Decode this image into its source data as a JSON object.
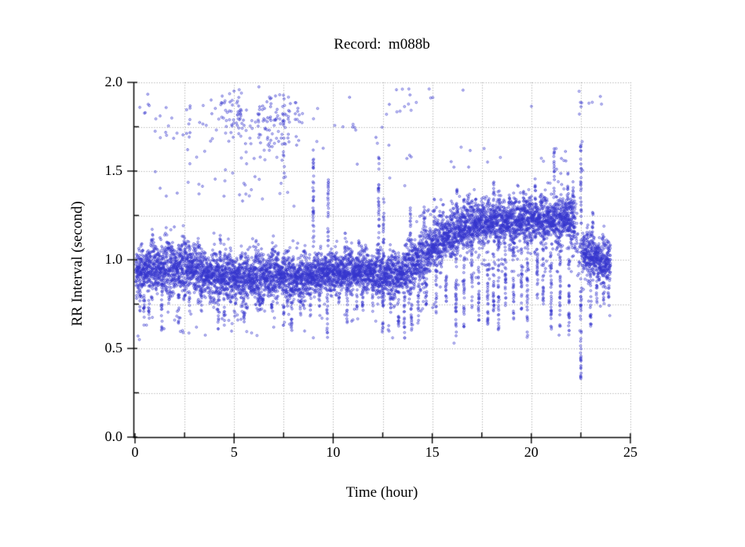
{
  "chart": {
    "title": "Record:  m088b",
    "xlabel": "Time (hour)",
    "ylabel": "RR Interval (second)",
    "x_tick_labels": [
      "0",
      "5",
      "10",
      "15",
      "20",
      "25"
    ],
    "y_tick_labels": [
      "0.0",
      "0.5",
      "1.0",
      "1.5",
      "2.0"
    ]
  },
  "chart_data": {
    "type": "scatter",
    "title": "Record:  m088b",
    "xlabel": "Time (hour)",
    "ylabel": "RR Interval (second)",
    "xlim": [
      0,
      25
    ],
    "ylim": [
      0.0,
      2.0
    ],
    "x_major_ticks": [
      0,
      5,
      10,
      15,
      20,
      25
    ],
    "x_minor_step": 2.5,
    "y_major_ticks": [
      0.0,
      0.5,
      1.0,
      1.5,
      2.0
    ],
    "y_minor_step": 0.25,
    "grid": "dotted",
    "grid_color": "#9b9b9b",
    "axis_color": "#000000",
    "marker": {
      "shape": "open-circle",
      "color": "#3535cd",
      "radius_px": 1.3
    },
    "data_time_range_hours": [
      0.04,
      24.0
    ],
    "band_profile": [
      [
        0.0,
        0.92,
        0.1
      ],
      [
        0.5,
        0.93,
        0.13
      ],
      [
        1.0,
        0.95,
        0.14
      ],
      [
        2.0,
        0.95,
        0.15
      ],
      [
        3.0,
        0.95,
        0.15
      ],
      [
        4.0,
        0.92,
        0.14
      ],
      [
        4.6,
        0.9,
        0.13
      ],
      [
        6.0,
        0.9,
        0.14
      ],
      [
        7.0,
        0.91,
        0.14
      ],
      [
        8.0,
        0.9,
        0.13
      ],
      [
        9.0,
        0.9,
        0.11
      ],
      [
        9.5,
        0.92,
        0.1
      ],
      [
        10.0,
        0.93,
        0.11
      ],
      [
        11.0,
        0.93,
        0.11
      ],
      [
        12.0,
        0.93,
        0.11
      ],
      [
        12.6,
        0.92,
        0.12
      ],
      [
        13.2,
        0.9,
        0.13
      ],
      [
        13.8,
        0.95,
        0.15
      ],
      [
        14.4,
        1.02,
        0.15
      ],
      [
        15.0,
        1.07,
        0.14
      ],
      [
        15.6,
        1.12,
        0.14
      ],
      [
        16.2,
        1.16,
        0.13
      ],
      [
        16.8,
        1.2,
        0.12
      ],
      [
        17.5,
        1.2,
        0.12
      ],
      [
        18.5,
        1.21,
        0.13
      ],
      [
        19.5,
        1.22,
        0.12
      ],
      [
        20.5,
        1.22,
        0.12
      ],
      [
        21.0,
        1.23,
        0.12
      ],
      [
        21.8,
        1.24,
        0.13
      ],
      [
        22.2,
        1.2,
        0.14
      ],
      [
        22.35,
        1.05,
        0.25
      ],
      [
        22.6,
        1.05,
        0.12
      ],
      [
        23.2,
        1.03,
        0.12
      ],
      [
        23.6,
        0.98,
        0.13
      ],
      [
        24.0,
        0.99,
        0.14
      ]
    ],
    "down_spikes": [
      [
        0.25,
        0.7
      ],
      [
        0.45,
        0.62
      ],
      [
        0.7,
        0.66
      ],
      [
        1.35,
        0.6
      ],
      [
        2.2,
        0.63
      ],
      [
        2.75,
        0.71
      ],
      [
        3.35,
        0.68
      ],
      [
        4.2,
        0.6
      ],
      [
        4.5,
        0.63
      ],
      [
        5.05,
        0.68
      ],
      [
        5.5,
        0.65
      ],
      [
        6.3,
        0.7
      ],
      [
        6.9,
        0.72
      ],
      [
        7.5,
        0.63
      ],
      [
        7.9,
        0.6
      ],
      [
        8.35,
        0.68
      ],
      [
        8.85,
        0.65
      ],
      [
        9.3,
        0.72
      ],
      [
        9.7,
        0.56
      ],
      [
        10.3,
        0.74
      ],
      [
        10.7,
        0.63
      ],
      [
        11.2,
        0.72
      ],
      [
        11.5,
        0.7
      ],
      [
        12.0,
        0.74
      ],
      [
        12.5,
        0.56
      ],
      [
        12.9,
        0.7
      ],
      [
        13.3,
        0.6
      ],
      [
        13.6,
        0.55
      ],
      [
        13.95,
        0.58
      ],
      [
        14.3,
        0.65
      ],
      [
        14.7,
        0.72
      ],
      [
        15.2,
        0.7
      ],
      [
        15.7,
        0.74
      ],
      [
        16.2,
        0.56
      ],
      [
        16.6,
        0.62
      ],
      [
        17.0,
        0.72
      ],
      [
        17.35,
        0.65
      ],
      [
        17.8,
        0.62
      ],
      [
        18.1,
        0.7
      ],
      [
        18.35,
        0.6
      ],
      [
        18.7,
        0.74
      ],
      [
        19.1,
        0.65
      ],
      [
        19.5,
        0.72
      ],
      [
        19.8,
        0.56
      ],
      [
        20.3,
        0.78
      ],
      [
        20.6,
        0.74
      ],
      [
        21.0,
        0.6
      ],
      [
        21.45,
        0.62
      ],
      [
        21.9,
        0.56
      ],
      [
        22.5,
        0.33
      ],
      [
        23.0,
        0.62
      ],
      [
        23.3,
        0.72
      ],
      [
        23.65,
        0.75
      ],
      [
        23.9,
        0.78
      ]
    ],
    "up_spikes": [
      [
        4.3,
        1.16
      ],
      [
        6.1,
        1.14
      ],
      [
        9.0,
        1.62
      ],
      [
        9.75,
        1.47
      ],
      [
        10.6,
        1.16
      ],
      [
        11.3,
        1.12
      ],
      [
        12.3,
        1.6
      ],
      [
        12.55,
        1.36
      ],
      [
        13.9,
        1.3
      ],
      [
        14.6,
        1.32
      ],
      [
        15.1,
        1.35
      ],
      [
        15.55,
        1.33
      ],
      [
        16.25,
        1.4
      ],
      [
        16.6,
        1.38
      ],
      [
        17.2,
        1.36
      ],
      [
        18.1,
        1.44
      ],
      [
        18.9,
        1.38
      ],
      [
        19.6,
        1.4
      ],
      [
        20.2,
        1.48
      ],
      [
        21.15,
        1.63
      ],
      [
        21.85,
        1.5
      ],
      [
        22.1,
        1.44
      ],
      [
        22.5,
        1.67
      ],
      [
        23.1,
        1.3
      ]
    ],
    "outlier_clusters": [
      {
        "t0": 0.2,
        "t1": 1.2,
        "y0": 1.6,
        "y1": 1.95,
        "n": 8
      },
      {
        "t0": 1.2,
        "t1": 2.6,
        "y0": 1.55,
        "y1": 1.95,
        "n": 10
      },
      {
        "t0": 2.6,
        "t1": 4.2,
        "y0": 1.5,
        "y1": 2.0,
        "n": 22
      },
      {
        "t0": 4.2,
        "t1": 5.4,
        "y0": 1.65,
        "y1": 2.0,
        "n": 52
      },
      {
        "t0": 5.0,
        "t1": 6.2,
        "y0": 1.5,
        "y1": 1.85,
        "n": 18
      },
      {
        "t0": 6.2,
        "t1": 7.6,
        "y0": 1.55,
        "y1": 2.0,
        "n": 78
      },
      {
        "t0": 7.4,
        "t1": 7.6,
        "y0": 1.42,
        "y1": 1.8,
        "n": 12
      },
      {
        "t0": 7.6,
        "t1": 8.5,
        "y0": 1.6,
        "y1": 2.0,
        "n": 25
      },
      {
        "t0": 1.0,
        "t1": 9.0,
        "y0": 1.28,
        "y1": 1.55,
        "n": 28
      },
      {
        "t0": 9.0,
        "t1": 12.6,
        "y0": 1.45,
        "y1": 1.98,
        "n": 16
      },
      {
        "t0": 12.6,
        "t1": 14.2,
        "y0": 1.75,
        "y1": 2.0,
        "n": 12
      },
      {
        "t0": 12.6,
        "t1": 14.2,
        "y0": 1.4,
        "y1": 1.75,
        "n": 6
      },
      {
        "t0": 14.8,
        "t1": 15.2,
        "y0": 1.88,
        "y1": 1.97,
        "n": 3
      },
      {
        "t0": 16.5,
        "t1": 16.8,
        "y0": 1.94,
        "y1": 2.0,
        "n": 1
      },
      {
        "t0": 20.0,
        "t1": 20.2,
        "y0": 1.84,
        "y1": 1.9,
        "n": 1
      },
      {
        "t0": 15.5,
        "t1": 18.6,
        "y0": 1.45,
        "y1": 1.75,
        "n": 8
      },
      {
        "t0": 22.4,
        "t1": 23.7,
        "y0": 1.78,
        "y1": 2.0,
        "n": 9
      },
      {
        "t0": 20.1,
        "t1": 22.6,
        "y0": 1.4,
        "y1": 1.7,
        "n": 12
      }
    ],
    "outlier_points": [
      [
        0.15,
        0.57
      ],
      [
        0.22,
        0.55
      ],
      [
        2.0,
        0.66
      ],
      [
        3.1,
        0.62
      ],
      [
        4.9,
        0.64
      ],
      [
        7.0,
        0.62
      ],
      [
        9.0,
        0.56
      ],
      [
        13.0,
        0.56
      ],
      [
        16.1,
        0.53
      ],
      [
        21.4,
        0.575
      ],
      [
        22.45,
        0.6
      ],
      [
        22.5,
        0.435
      ],
      [
        22.5,
        0.33
      ]
    ]
  }
}
